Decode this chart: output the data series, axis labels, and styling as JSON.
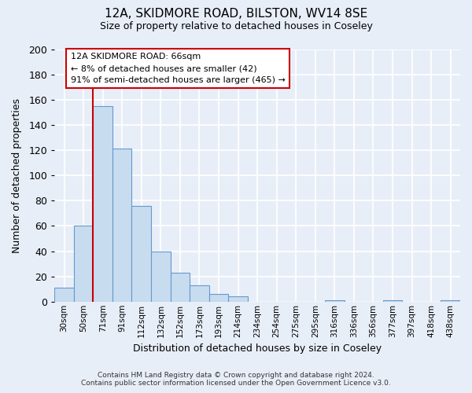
{
  "title": "12A, SKIDMORE ROAD, BILSTON, WV14 8SE",
  "subtitle": "Size of property relative to detached houses in Coseley",
  "xlabel": "Distribution of detached houses by size in Coseley",
  "ylabel": "Number of detached properties",
  "bar_color": "#c8dcf0",
  "bar_edge_color": "#6699cc",
  "categories": [
    "30sqm",
    "50sqm",
    "71sqm",
    "91sqm",
    "112sqm",
    "132sqm",
    "152sqm",
    "173sqm",
    "193sqm",
    "214sqm",
    "234sqm",
    "254sqm",
    "275sqm",
    "295sqm",
    "316sqm",
    "336sqm",
    "356sqm",
    "377sqm",
    "397sqm",
    "418sqm",
    "438sqm"
  ],
  "values": [
    11,
    60,
    155,
    121,
    76,
    40,
    23,
    13,
    6,
    4,
    0,
    0,
    0,
    0,
    1,
    0,
    0,
    1,
    0,
    0,
    1
  ],
  "ylim": [
    0,
    200
  ],
  "yticks": [
    0,
    20,
    40,
    60,
    80,
    100,
    120,
    140,
    160,
    180,
    200
  ],
  "property_line_label": "12A SKIDMORE ROAD: 66sqm",
  "annotation_line1": "← 8% of detached houses are smaller (42)",
  "annotation_line2": "91% of semi-detached houses are larger (465) →",
  "footer_line1": "Contains HM Land Registry data © Crown copyright and database right 2024.",
  "footer_line2": "Contains public sector information licensed under the Open Government Licence v3.0.",
  "background_color": "#e8eef8",
  "grid_color": "#ffffff",
  "red_line_color": "#cc0000",
  "red_line_x": 1.5
}
